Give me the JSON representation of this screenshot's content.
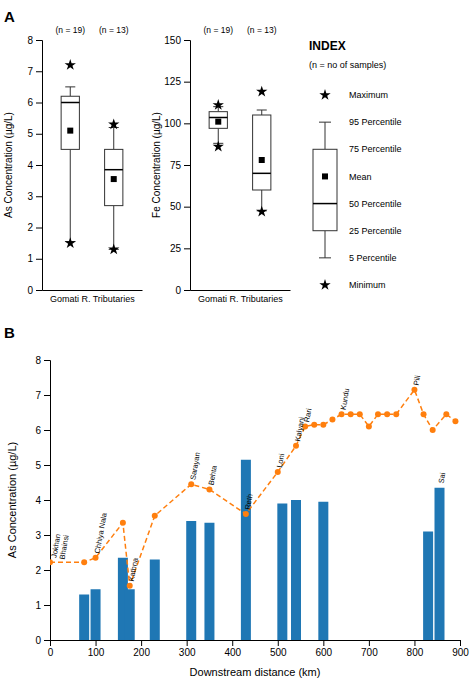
{
  "chart_data": [
    {
      "type": "box",
      "title": "A",
      "categories": [
        "Gomati R.",
        "Tributaries"
      ],
      "n_labels": [
        "(n = 19)",
        "(n = 13)"
      ],
      "boxes": [
        {
          "p5": 1.55,
          "p25": 4.5,
          "p50": 6.0,
          "p75": 6.2,
          "p95": 6.5,
          "mean": 5.1,
          "minimum": 1.5,
          "maximum": 7.2
        },
        {
          "p5": 1.3,
          "p25": 2.7,
          "p50": 3.85,
          "p75": 4.5,
          "p95": 5.2,
          "mean": 3.55,
          "minimum": 1.3,
          "maximum": 5.3
        }
      ],
      "y_label": "As Concentration (µg/L)",
      "ylim": [
        0,
        8
      ],
      "yticks": [
        0,
        1,
        2,
        3,
        4,
        5,
        6,
        7,
        8
      ]
    },
    {
      "type": "box",
      "categories": [
        "Gomati R.",
        "Tributaries"
      ],
      "n_labels": [
        "(n = 19)",
        "(n = 13)"
      ],
      "boxes": [
        {
          "p5": 88.0,
          "p25": 97.0,
          "p50": 103.5,
          "p75": 107.0,
          "p95": 110.0,
          "mean": 101.0,
          "minimum": 86.0,
          "maximum": 111.0
        },
        {
          "p5": 47.5,
          "p25": 60.0,
          "p50": 70.0,
          "p75": 105.0,
          "p95": 108.0,
          "mean": 78.0,
          "minimum": 47.0,
          "maximum": 119.0
        }
      ],
      "y_label": "Fe Concentration (µg/L)",
      "ylim": [
        0,
        150
      ],
      "yticks": [
        0,
        25,
        50,
        75,
        100,
        125,
        150
      ]
    },
    {
      "type": "box_key",
      "title": "INDEX",
      "subtitle": "(n = no of samples)",
      "labels": [
        "Maximum",
        "95 Percentile",
        "75 Percentile",
        "Mean",
        "50 Percentile",
        "25 Percentile",
        "5 Percentile",
        "Minimum"
      ]
    },
    {
      "type": "bar",
      "title": "B",
      "x_label": "Downstream distance (km)",
      "y_label": "As Concentration (µg/L)",
      "series": [
        {
          "type": "bar",
          "x": [
            75,
            100,
            160,
            175,
            230,
            310,
            350,
            430,
            510,
            540,
            600,
            830,
            855
          ],
          "values": [
            1.3,
            1.45,
            2.35,
            1.45,
            2.3,
            3.4,
            3.35,
            5.15,
            3.9,
            4.0,
            3.95,
            3.1,
            4.35
          ]
        },
        {
          "type": "line",
          "marker": "circle",
          "line_style": "dashed",
          "x": [
            0,
            75,
            100,
            160,
            175,
            230,
            310,
            350,
            430,
            500,
            540,
            560,
            580,
            600,
            620,
            640,
            660,
            680,
            700,
            720,
            740,
            760,
            800,
            820,
            840,
            870,
            890
          ],
          "values": [
            2.22,
            2.22,
            2.35,
            3.35,
            1.55,
            3.55,
            4.45,
            4.3,
            3.6,
            4.8,
            5.55,
            6.1,
            6.15,
            6.15,
            6.3,
            6.45,
            6.45,
            6.45,
            6.1,
            6.45,
            6.45,
            6.45,
            7.15,
            6.45,
            6.0,
            6.45,
            6.25
          ]
        }
      ],
      "annotations": [
        {
          "text": "Jokhan\nBhainsi",
          "x": 5,
          "y": 2.22
        },
        {
          "text": "Chhiya Nala",
          "x": 100,
          "y": 2.35
        },
        {
          "text": "Kathna",
          "x": 175,
          "y": 1.55
        },
        {
          "text": "Sarayan",
          "x": 310,
          "y": 4.45
        },
        {
          "text": "Behta",
          "x": 350,
          "y": 4.3
        },
        {
          "text": "Reth",
          "x": 430,
          "y": 3.6
        },
        {
          "text": "Loni",
          "x": 500,
          "y": 4.8
        },
        {
          "text": "Kalyani",
          "x": 540,
          "y": 5.55
        },
        {
          "text": "Rari",
          "x": 560,
          "y": 6.1
        },
        {
          "text": "Kundu",
          "x": 640,
          "y": 6.45
        },
        {
          "text": "Pili",
          "x": 800,
          "y": 7.15
        },
        {
          "text": "Sai",
          "x": 855,
          "y": 4.35
        }
      ],
      "xlim": [
        0,
        900
      ],
      "xticks": [
        0,
        100,
        200,
        300,
        400,
        500,
        600,
        700,
        800,
        900
      ],
      "ylim": [
        0,
        8
      ],
      "yticks": [
        0,
        1,
        2,
        3,
        4,
        5,
        6,
        7,
        8
      ]
    }
  ]
}
